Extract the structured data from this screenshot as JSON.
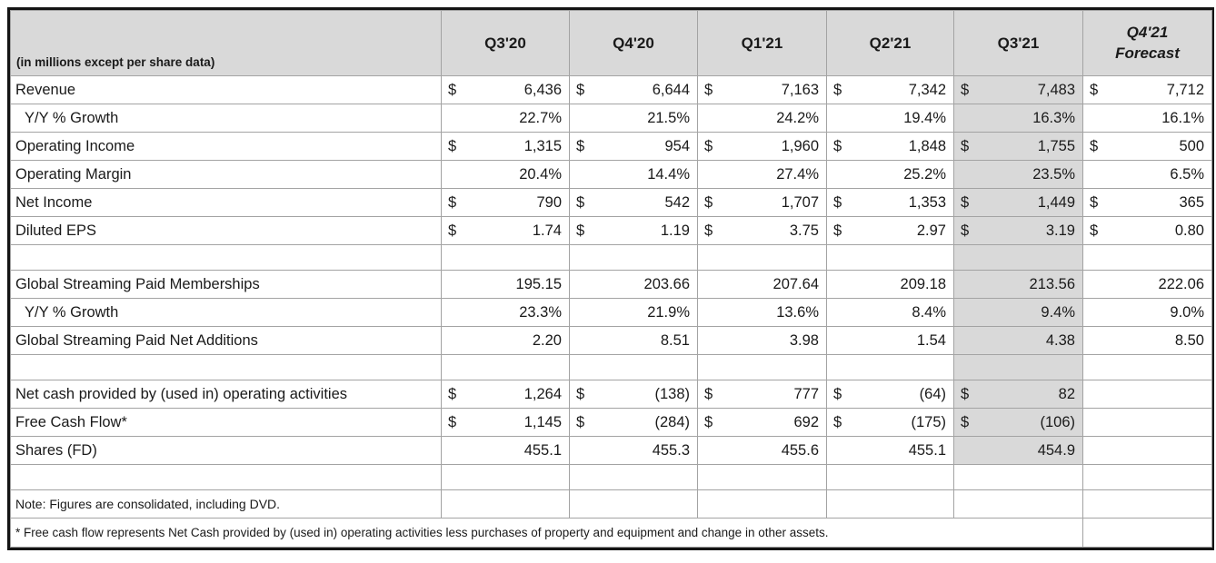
{
  "table": {
    "corner_label": "(in millions except per share data)",
    "currency": "$",
    "columns": [
      "Q3'20",
      "Q4'20",
      "Q1'21",
      "Q2'21",
      "Q3'21"
    ],
    "forecast_column": {
      "line1": "Q4'21",
      "line2": "Forecast"
    },
    "highlight_column_index": 4,
    "colors": {
      "header_bg": "#d9d9d9",
      "highlight_bg": "#d9d9d9",
      "grid_line": "#a3a3a3",
      "outer_border": "#141414",
      "text": "#1a1a1a",
      "page_bg": "#ffffff"
    },
    "rows": [
      {
        "label": "Revenue",
        "type": "money",
        "shaded": true,
        "values": [
          "6,436",
          "6,644",
          "7,163",
          "7,342",
          "7,483",
          "7,712"
        ]
      },
      {
        "label": "Y/Y % Growth",
        "indent": true,
        "type": "plain",
        "shaded": true,
        "values": [
          "22.7%",
          "21.5%",
          "24.2%",
          "19.4%",
          "16.3%",
          "16.1%"
        ]
      },
      {
        "label": "Operating Income",
        "type": "money",
        "shaded": true,
        "values": [
          "1,315",
          "954",
          "1,960",
          "1,848",
          "1,755",
          "500"
        ]
      },
      {
        "label": "Operating Margin",
        "type": "plain",
        "shaded": true,
        "values": [
          "20.4%",
          "14.4%",
          "27.4%",
          "25.2%",
          "23.5%",
          "6.5%"
        ]
      },
      {
        "label": "Net Income",
        "type": "money",
        "shaded": true,
        "values": [
          "790",
          "542",
          "1,707",
          "1,353",
          "1,449",
          "365"
        ]
      },
      {
        "label": "Diluted EPS",
        "type": "money",
        "shaded": true,
        "values": [
          "1.74",
          "1.19",
          "3.75",
          "2.97",
          "3.19",
          "0.80"
        ]
      },
      {
        "label": "",
        "type": "blank",
        "shaded": true,
        "values": [
          "",
          "",
          "",
          "",
          "",
          ""
        ]
      },
      {
        "label": "Global Streaming Paid Memberships",
        "type": "plain",
        "shaded": true,
        "values": [
          "195.15",
          "203.66",
          "207.64",
          "209.18",
          "213.56",
          "222.06"
        ]
      },
      {
        "label": "Y/Y % Growth",
        "indent": true,
        "type": "plain",
        "shaded": true,
        "values": [
          "23.3%",
          "21.9%",
          "13.6%",
          "8.4%",
          "9.4%",
          "9.0%"
        ]
      },
      {
        "label": "Global Streaming Paid Net Additions",
        "type": "plain",
        "shaded": true,
        "values": [
          "2.20",
          "8.51",
          "3.98",
          "1.54",
          "4.38",
          "8.50"
        ]
      },
      {
        "label": "",
        "type": "blank",
        "shaded": true,
        "values": [
          "",
          "",
          "",
          "",
          "",
          ""
        ]
      },
      {
        "label": "Net cash provided by (used in) operating activities",
        "type": "money",
        "shaded": true,
        "values": [
          "1,264",
          "(138)",
          "777",
          "(64)",
          "82",
          ""
        ]
      },
      {
        "label": "Free Cash Flow*",
        "type": "money",
        "shaded": true,
        "values": [
          "1,145",
          "(284)",
          "692",
          "(175)",
          "(106)",
          ""
        ]
      },
      {
        "label": "Shares (FD)",
        "type": "plain",
        "shaded": true,
        "values": [
          "455.1",
          "455.3",
          "455.6",
          "455.1",
          "454.9",
          ""
        ]
      },
      {
        "label": "",
        "type": "blank",
        "shaded": false,
        "values": [
          "",
          "",
          "",
          "",
          "",
          ""
        ]
      },
      {
        "label": "Note: Figures are consolidated, including DVD.",
        "type": "note",
        "shaded": false,
        "values": [
          "",
          "",
          "",
          "",
          "",
          ""
        ]
      },
      {
        "label": "* Free cash flow represents Net Cash provided by (used in) operating activities less purchases of property and equipment and change in other assets.",
        "type": "footnote",
        "shaded": false,
        "values": [
          ""
        ]
      }
    ]
  }
}
